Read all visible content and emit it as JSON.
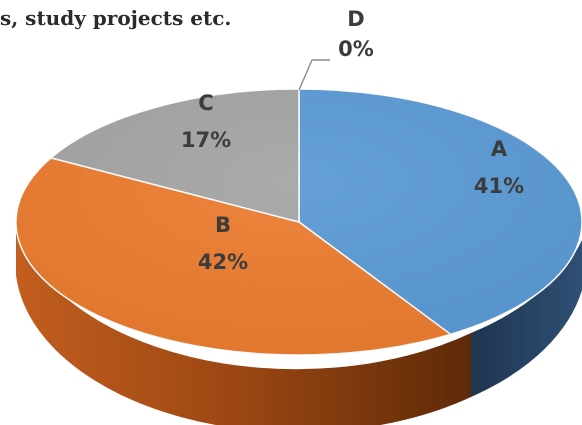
{
  "header": {
    "text": "s, study projects etc."
  },
  "chart_data": {
    "type": "pie",
    "categories": [
      "A",
      "B",
      "C",
      "D"
    ],
    "values": [
      41,
      42,
      17,
      0
    ],
    "labels": [
      "41%",
      "42%",
      "17%",
      "0%"
    ],
    "colors": [
      "#5B9BD5",
      "#ED7D31",
      "#A5A5A5",
      "#FFC000"
    ],
    "style": "3d"
  }
}
